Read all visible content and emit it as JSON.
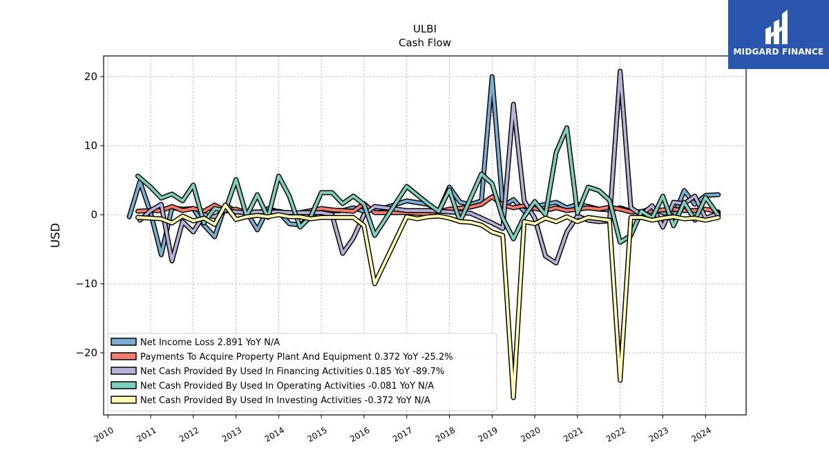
{
  "logo": {
    "text": "MIDGARD FINANCE"
  },
  "chart_data": {
    "type": "line",
    "title": "ULBI",
    "subtitle": "Cash Flow",
    "ylabel": "USD",
    "xlabel": "",
    "ylim": [
      -29,
      23
    ],
    "xlim": [
      2009.9,
      2024.95
    ],
    "yticks": [
      -20,
      -10,
      0,
      10,
      20
    ],
    "xticks": [
      "2010",
      "2011",
      "2012",
      "2013",
      "2014",
      "2015",
      "2016",
      "2017",
      "2018",
      "2019",
      "2020",
      "2021",
      "2022",
      "2023",
      "2024"
    ],
    "grid": true,
    "legend_position": "lower-left",
    "series": [
      {
        "name": "Net Income Loss  2.891 YoY N/A",
        "color": "#7aadd1",
        "x": [
          2010.5,
          2010.75,
          2011.0,
          2011.25,
          2011.5,
          2011.75,
          2012.0,
          2012.25,
          2012.5,
          2012.75,
          2013.0,
          2013.25,
          2013.5,
          2013.75,
          2014.0,
          2014.25,
          2014.5,
          2014.75,
          2015.0,
          2015.25,
          2015.5,
          2015.75,
          2016.0,
          2016.25,
          2016.5,
          2017.0,
          2017.5,
          2017.75,
          2018.0,
          2018.25,
          2018.5,
          2018.75,
          2019.0,
          2019.25,
          2019.5,
          2019.75,
          2020.0,
          2020.25,
          2020.5,
          2020.75,
          2021.0,
          2021.25,
          2021.5,
          2021.75,
          2022.0,
          2022.25,
          2022.5,
          2022.75,
          2023.0,
          2023.25,
          2023.5,
          2023.75,
          2024.0,
          2024.3
        ],
        "values": [
          -0.3,
          4.8,
          0.3,
          -5.8,
          1.0,
          0.8,
          0.9,
          -1.5,
          -3.2,
          1.4,
          0.5,
          0.4,
          -2.2,
          0.9,
          0.4,
          -1.3,
          -1.5,
          -0.2,
          0.7,
          0.5,
          0.6,
          1.0,
          0.5,
          0.8,
          1.0,
          2.0,
          1.5,
          0.5,
          4.0,
          1.8,
          1.5,
          2.0,
          20.0,
          1.2,
          2.2,
          0.5,
          1.2,
          1.5,
          1.8,
          1.0,
          1.5,
          1.2,
          0.8,
          0.7,
          1.0,
          0.5,
          0.4,
          1.0,
          0.3,
          -0.3,
          3.5,
          1.5,
          2.8,
          2.9
        ]
      },
      {
        "name": "Payments To Acquire Property Plant And Equipment  0.372 YoY -25.2%",
        "color": "#f47c6e",
        "x": [
          2010.7,
          2011.0,
          2011.25,
          2011.5,
          2011.75,
          2012.0,
          2012.25,
          2012.5,
          2012.75,
          2013.0,
          2013.25,
          2013.5,
          2013.75,
          2014.0,
          2014.25,
          2014.5,
          2014.75,
          2015.0,
          2015.25,
          2015.5,
          2015.75,
          2016.0,
          2016.25,
          2016.5,
          2017.0,
          2017.5,
          2018.0,
          2018.5,
          2018.75,
          2019.0,
          2019.25,
          2019.5,
          2019.75,
          2020.0,
          2020.25,
          2020.5,
          2020.75,
          2021.0,
          2021.25,
          2021.5,
          2021.75,
          2022.0,
          2022.25,
          2022.5,
          2022.75,
          2023.0,
          2023.25,
          2023.5,
          2023.75,
          2024.0,
          2024.3
        ],
        "values": [
          0.5,
          0.6,
          0.6,
          1.2,
          0.6,
          0.9,
          0.5,
          1.4,
          0.6,
          0.8,
          0.3,
          0.4,
          0.5,
          0.5,
          0.2,
          0.3,
          0.6,
          0.9,
          0.7,
          0.6,
          0.5,
          1.6,
          0.3,
          0.3,
          0.3,
          0.1,
          0.8,
          1.1,
          1.5,
          2.6,
          1.4,
          1.0,
          1.3,
          0.9,
          0.6,
          1.0,
          0.6,
          0.8,
          1.0,
          0.8,
          1.1,
          0.8,
          0.4,
          0.4,
          0.5,
          0.7,
          0.8,
          0.6,
          0.6,
          0.8,
          0.4
        ]
      },
      {
        "name": "Net Cash Provided By Used In Financing Activities  0.185 YoY -89.7%",
        "color": "#b8b1d6",
        "x": [
          2010.75,
          2011.0,
          2011.25,
          2011.5,
          2011.75,
          2012.0,
          2012.25,
          2012.5,
          2012.75,
          2013.0,
          2013.25,
          2013.5,
          2013.75,
          2014.0,
          2014.25,
          2014.5,
          2014.75,
          2015.0,
          2015.25,
          2015.5,
          2015.75,
          2016.0,
          2016.25,
          2016.5,
          2017.0,
          2017.5,
          2018.0,
          2018.5,
          2018.75,
          2019.0,
          2019.25,
          2019.5,
          2019.75,
          2020.0,
          2020.25,
          2020.5,
          2020.75,
          2021.0,
          2021.25,
          2021.5,
          2021.75,
          2022.0,
          2022.25,
          2022.5,
          2022.75,
          2023.0,
          2023.25,
          2023.5,
          2023.75,
          2024.0,
          2024.3
        ],
        "values": [
          -0.8,
          0.6,
          1.5,
          -6.7,
          -1.0,
          -2.5,
          0.0,
          -0.3,
          0.6,
          0.4,
          0.3,
          0.4,
          0.4,
          0.4,
          0.3,
          0.3,
          0.3,
          0.3,
          0.0,
          -5.6,
          -3.4,
          0.0,
          1.2,
          1.0,
          0.6,
          0.6,
          0.4,
          0.2,
          -0.5,
          -1.2,
          -2.0,
          16.0,
          2.0,
          -0.5,
          -6.0,
          -7.0,
          -2.5,
          -0.2,
          -0.8,
          -1.0,
          -0.9,
          20.8,
          1.0,
          0.0,
          1.3,
          -1.8,
          1.8,
          1.6,
          2.7,
          -0.5,
          0.2
        ]
      },
      {
        "name": "Net Cash Provided By Used In Operating Activities  -0.081 YoY N/A",
        "color": "#7fcdbb",
        "x": [
          2010.7,
          2011.0,
          2011.25,
          2011.5,
          2011.75,
          2012.0,
          2012.25,
          2012.5,
          2012.75,
          2013.0,
          2013.25,
          2013.5,
          2013.75,
          2014.0,
          2014.25,
          2014.5,
          2014.75,
          2015.0,
          2015.25,
          2015.5,
          2015.75,
          2016.0,
          2016.25,
          2017.0,
          2017.5,
          2017.75,
          2018.0,
          2018.25,
          2018.75,
          2019.0,
          2019.25,
          2019.5,
          2019.75,
          2020.0,
          2020.25,
          2020.5,
          2020.75,
          2021.0,
          2021.25,
          2021.5,
          2021.75,
          2022.0,
          2022.25,
          2022.5,
          2022.75,
          2023.0,
          2023.25,
          2023.5,
          2023.75,
          2024.0,
          2024.3
        ],
        "values": [
          5.6,
          4.0,
          2.4,
          3.0,
          2.0,
          4.3,
          -1.2,
          0.9,
          0.6,
          5.1,
          -0.2,
          2.9,
          -0.4,
          5.6,
          2.7,
          -1.8,
          -0.3,
          3.2,
          3.2,
          1.6,
          2.7,
          1.5,
          -3.0,
          4.1,
          1.6,
          0.5,
          3.6,
          -1.0,
          5.9,
          4.5,
          -0.5,
          -3.5,
          -0.3,
          1.9,
          0.0,
          9.0,
          12.6,
          0.2,
          4.0,
          3.5,
          2.1,
          -4.0,
          -3.0,
          0.5,
          -0.5,
          2.7,
          -1.6,
          1.8,
          -0.8,
          2.5,
          -0.1
        ]
      },
      {
        "name": "Net Cash Provided By Used In Investing Activities  -0.372 YoY N/A",
        "color": "#ffffb3",
        "x": [
          2010.7,
          2011.0,
          2011.25,
          2011.5,
          2011.75,
          2012.0,
          2012.25,
          2012.5,
          2012.75,
          2013.0,
          2013.25,
          2013.5,
          2013.75,
          2014.0,
          2014.25,
          2014.5,
          2014.75,
          2015.0,
          2015.25,
          2015.5,
          2015.75,
          2016.0,
          2016.25,
          2017.0,
          2017.25,
          2017.5,
          2017.75,
          2018.0,
          2018.25,
          2018.5,
          2018.75,
          2019.0,
          2019.25,
          2019.5,
          2019.75,
          2020.0,
          2020.25,
          2020.5,
          2020.75,
          2021.0,
          2021.25,
          2021.5,
          2021.75,
          2022.0,
          2022.25,
          2022.5,
          2022.75,
          2023.0,
          2023.25,
          2023.5,
          2023.75,
          2024.0,
          2024.3
        ],
        "values": [
          -0.4,
          -0.5,
          -0.6,
          -1.2,
          -0.2,
          -0.9,
          -0.5,
          -1.4,
          1.4,
          -0.7,
          -0.3,
          -0.1,
          -0.3,
          0.0,
          -0.3,
          -0.3,
          -0.6,
          -0.4,
          -0.4,
          -0.4,
          -0.4,
          -1.6,
          -10.0,
          -0.3,
          -0.6,
          -0.3,
          -0.2,
          -0.5,
          -1.0,
          -1.1,
          -1.5,
          -2.5,
          -3.0,
          -26.5,
          -1.0,
          -1.3,
          -0.5,
          -1.0,
          -0.3,
          -1.0,
          -0.4,
          -0.6,
          -0.8,
          -24.0,
          -0.4,
          -0.4,
          -0.8,
          -0.5,
          -0.3,
          -0.6,
          -0.5,
          -0.8,
          -0.4
        ]
      }
    ]
  }
}
